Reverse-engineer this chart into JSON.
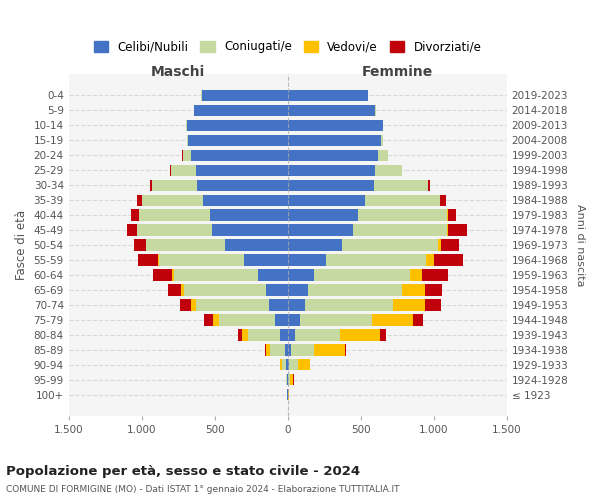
{
  "age_groups": [
    "100+",
    "95-99",
    "90-94",
    "85-89",
    "80-84",
    "75-79",
    "70-74",
    "65-69",
    "60-64",
    "55-59",
    "50-54",
    "45-49",
    "40-44",
    "35-39",
    "30-34",
    "25-29",
    "20-24",
    "15-19",
    "10-14",
    "5-9",
    "0-4"
  ],
  "birth_years": [
    "≤ 1923",
    "1924-1928",
    "1929-1933",
    "1934-1938",
    "1939-1943",
    "1944-1948",
    "1949-1953",
    "1954-1958",
    "1959-1963",
    "1964-1968",
    "1969-1973",
    "1974-1978",
    "1979-1983",
    "1984-1988",
    "1989-1993",
    "1994-1998",
    "1999-2003",
    "2004-2008",
    "2009-2013",
    "2014-2018",
    "2019-2023"
  ],
  "maschi": {
    "celibi": [
      2,
      4,
      10,
      20,
      50,
      90,
      130,
      150,
      200,
      300,
      430,
      520,
      530,
      580,
      620,
      630,
      660,
      680,
      690,
      640,
      590
    ],
    "coniugati": [
      2,
      8,
      30,
      100,
      220,
      380,
      500,
      560,
      580,
      580,
      540,
      510,
      490,
      420,
      310,
      170,
      60,
      10,
      5,
      2,
      2
    ],
    "vedovi": [
      0,
      2,
      10,
      30,
      40,
      40,
      30,
      20,
      10,
      5,
      3,
      2,
      1,
      0,
      0,
      0,
      0,
      0,
      0,
      0,
      0
    ],
    "divorziati": [
      0,
      0,
      2,
      5,
      30,
      60,
      80,
      90,
      130,
      140,
      80,
      70,
      50,
      30,
      10,
      5,
      2,
      0,
      0,
      0,
      0
    ]
  },
  "femmine": {
    "nubili": [
      2,
      4,
      10,
      20,
      50,
      85,
      120,
      140,
      180,
      260,
      370,
      450,
      480,
      530,
      590,
      600,
      620,
      640,
      650,
      600,
      550
    ],
    "coniugate": [
      2,
      15,
      60,
      160,
      310,
      490,
      600,
      640,
      660,
      690,
      660,
      640,
      610,
      510,
      370,
      180,
      65,
      12,
      5,
      2,
      2
    ],
    "vedove": [
      3,
      20,
      80,
      210,
      270,
      280,
      220,
      160,
      80,
      50,
      20,
      10,
      5,
      2,
      1,
      0,
      0,
      0,
      0,
      0,
      0
    ],
    "divorziate": [
      0,
      2,
      5,
      10,
      40,
      70,
      110,
      120,
      180,
      200,
      120,
      130,
      60,
      40,
      15,
      5,
      2,
      0,
      0,
      0,
      0
    ]
  },
  "colors": {
    "celibi": "#4472c4",
    "coniugati": "#c5d9a0",
    "vedovi": "#ffc000",
    "divorziati": "#c0000b"
  },
  "xlim": 1500,
  "title": "Popolazione per età, sesso e stato civile - 2024",
  "subtitle": "COMUNE DI FORMIGINE (MO) - Dati ISTAT 1° gennaio 2024 - Elaborazione TUTTITALIA.IT",
  "ylabel": "Fasce di età",
  "ylabel_right": "Anni di nascita",
  "xlabel_left": "Maschi",
  "xlabel_right": "Femmine",
  "legend_labels": [
    "Celibi/Nubili",
    "Coniugati/e",
    "Vedovi/e",
    "Divorziati/e"
  ],
  "background_color": "#ffffff",
  "grid_color": "#cccccc"
}
